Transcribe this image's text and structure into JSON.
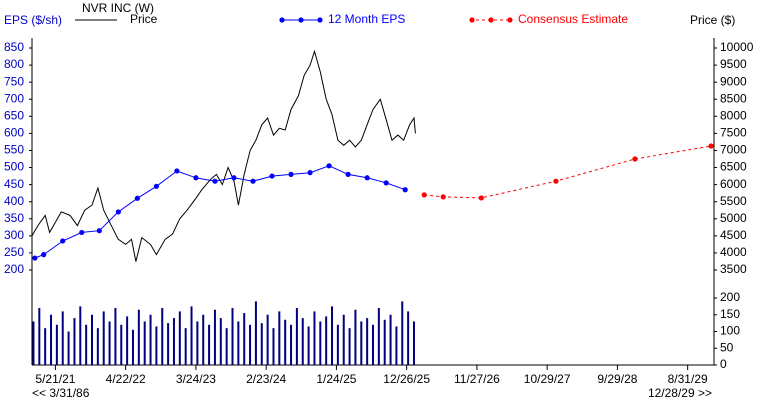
{
  "chart_data": {
    "type": "line",
    "title": "NVR INC (W)",
    "y_label": "EPS ($/sh)",
    "y2_label": "Price ($)",
    "x_start_label": "<< 3/31/86",
    "x_end_label": "12/28/29 >>",
    "xlim": [
      0,
      466
    ],
    "xticks": [
      {
        "value": 16,
        "label": "5/21/21"
      },
      {
        "value": 64,
        "label": "4/22/22"
      },
      {
        "value": 112,
        "label": "3/24/23"
      },
      {
        "value": 160,
        "label": "2/23/24"
      },
      {
        "value": 208,
        "label": "1/24/25"
      },
      {
        "value": 256,
        "label": "12/26/25"
      },
      {
        "value": 304,
        "label": "11/27/26"
      },
      {
        "value": 352,
        "label": "10/29/27"
      },
      {
        "value": 400,
        "label": "9/29/28"
      },
      {
        "value": 448,
        "label": "8/31/29"
      }
    ],
    "ylim": [
      200,
      850
    ],
    "yticks": [
      200,
      250,
      300,
      350,
      400,
      450,
      500,
      550,
      600,
      650,
      700,
      750,
      800,
      850
    ],
    "y2lim": [
      3500,
      10000
    ],
    "y2ticks": [
      3500,
      4000,
      4500,
      5000,
      5500,
      6000,
      6500,
      7000,
      7500,
      8000,
      8500,
      9000,
      9500,
      10000
    ],
    "series": [
      {
        "name": "Price",
        "color": "#000000",
        "axis": "y2",
        "markers": false,
        "dashed": false,
        "x": [
          0,
          4,
          9,
          12,
          16,
          20,
          26,
          31,
          36,
          41,
          45,
          49,
          53,
          59,
          64,
          68,
          71,
          75,
          81,
          85,
          91,
          96,
          101,
          106,
          112,
          116,
          122,
          126,
          130,
          134,
          138,
          141,
          145,
          149,
          153,
          157,
          161,
          165,
          169,
          173,
          177,
          182,
          186,
          190,
          193,
          197,
          201,
          205,
          209,
          213,
          217,
          221,
          225,
          229,
          233,
          238,
          242,
          246,
          250,
          254,
          258,
          261,
          262
        ],
        "values": [
          4500,
          4800,
          5100,
          4600,
          4900,
          5200,
          5100,
          4800,
          5250,
          5400,
          5900,
          5250,
          4900,
          4400,
          4250,
          4400,
          3750,
          4450,
          4250,
          3950,
          4400,
          4550,
          5000,
          5250,
          5600,
          5850,
          6150,
          6300,
          6000,
          6500,
          6100,
          5400,
          6300,
          7000,
          7300,
          7750,
          7950,
          7450,
          7650,
          7600,
          8200,
          8600,
          9200,
          9500,
          9900,
          9300,
          8500,
          8050,
          7300,
          7150,
          7300,
          7100,
          7300,
          7750,
          8200,
          8500,
          7900,
          7300,
          7450,
          7300,
          7750,
          7950,
          7500
        ]
      },
      {
        "name": "12 Month EPS",
        "color": "#0000ff",
        "markers": true,
        "dashed": false,
        "x": [
          2,
          8,
          21,
          34,
          46,
          59,
          72,
          85,
          99,
          112,
          125,
          138,
          151,
          164,
          177,
          190,
          203,
          216,
          229,
          242,
          255
        ],
        "values": [
          235,
          245,
          285,
          310,
          315,
          370,
          410,
          445,
          490,
          470,
          460,
          470,
          460,
          475,
          480,
          485,
          505,
          480,
          470,
          455,
          435
        ]
      },
      {
        "name": "Consensus Estimate",
        "color": "#ff0000",
        "markers": true,
        "dashed": true,
        "x": [
          268,
          281,
          307,
          358,
          412,
          464
        ],
        "values": [
          420,
          414,
          411,
          460,
          525,
          563
        ]
      }
    ],
    "volume": {
      "color": "#000080",
      "ylim": [
        0,
        200
      ],
      "yticks": [
        0,
        50,
        100,
        150,
        200
      ],
      "x": [
        1,
        5,
        9,
        13,
        17,
        21,
        25,
        29,
        33,
        37,
        41,
        45,
        49,
        53,
        57,
        61,
        65,
        69,
        73,
        77,
        81,
        85,
        89,
        93,
        97,
        101,
        105,
        109,
        113,
        117,
        121,
        125,
        129,
        133,
        137,
        141,
        145,
        149,
        153,
        157,
        161,
        165,
        169,
        173,
        177,
        181,
        185,
        189,
        193,
        197,
        201,
        205,
        209,
        213,
        217,
        221,
        225,
        229,
        233,
        237,
        241,
        245,
        249,
        253,
        257,
        261
      ],
      "values": [
        130,
        170,
        110,
        150,
        120,
        160,
        100,
        140,
        175,
        120,
        150,
        110,
        160,
        130,
        170,
        120,
        145,
        105,
        165,
        130,
        150,
        115,
        170,
        125,
        140,
        160,
        110,
        175,
        130,
        150,
        120,
        165,
        140,
        110,
        170,
        130,
        155,
        120,
        190,
        125,
        150,
        110,
        160,
        135,
        120,
        170,
        140,
        115,
        160,
        130,
        145,
        175,
        120,
        150,
        110,
        165,
        130,
        140,
        120,
        170,
        135,
        150,
        115,
        190,
        160,
        130
      ]
    }
  }
}
